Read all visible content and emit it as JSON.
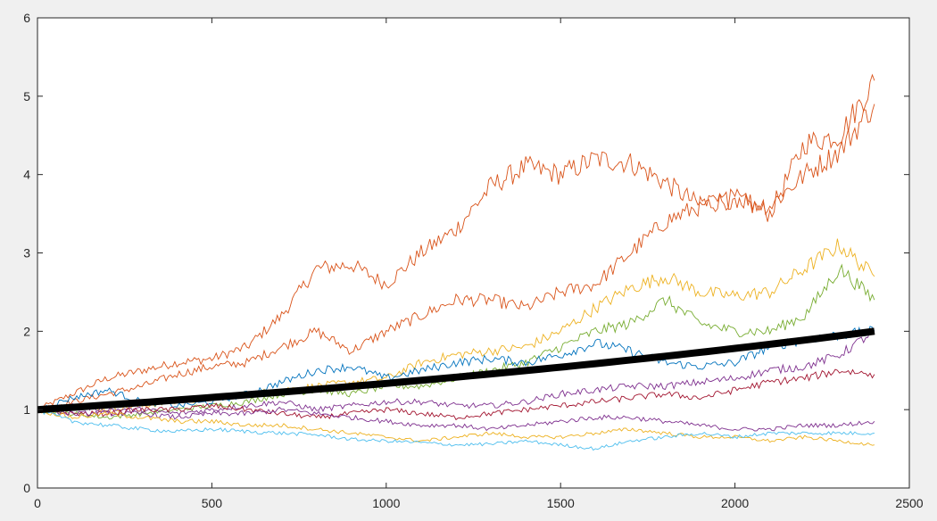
{
  "chart_data": {
    "type": "line",
    "title": "",
    "xlabel": "",
    "ylabel": "",
    "xlim": [
      0,
      2500
    ],
    "ylim": [
      0,
      6
    ],
    "x_ticks": [
      0,
      500,
      1000,
      1500,
      2000,
      2500
    ],
    "y_ticks": [
      0,
      1,
      2,
      3,
      4,
      5,
      6
    ],
    "x_tick_labels": [
      "0",
      "500",
      "1000",
      "1500",
      "2000",
      "2500"
    ],
    "y_tick_labels": [
      "0",
      "1",
      "2",
      "3",
      "4",
      "5",
      "6"
    ],
    "grid": false,
    "legend": "none",
    "mean_line": {
      "color": "#000000",
      "x": [
        0,
        2400
      ],
      "growth_end": 2.0
    },
    "series": [
      {
        "color": "#D95319",
        "x": [
          0,
          100,
          200,
          300,
          400,
          500,
          600,
          700,
          800,
          900,
          1000,
          1100,
          1200,
          1300,
          1400,
          1500,
          1600,
          1700,
          1800,
          1900,
          2000,
          2100,
          2200,
          2300,
          2400
        ],
        "values": [
          1.0,
          1.2,
          1.4,
          1.5,
          1.6,
          1.65,
          1.8,
          2.2,
          2.8,
          2.85,
          2.6,
          3.0,
          3.3,
          3.85,
          4.1,
          4.0,
          4.2,
          4.15,
          3.9,
          3.6,
          3.7,
          3.5,
          4.4,
          4.5,
          5.2
        ]
      },
      {
        "color": "#D95319",
        "x": [
          0,
          100,
          200,
          300,
          400,
          500,
          600,
          700,
          800,
          900,
          1000,
          1100,
          1200,
          1300,
          1400,
          1500,
          1600,
          1700,
          1800,
          1900,
          2000,
          2100,
          2200,
          2300,
          2400
        ],
        "values": [
          1.0,
          1.1,
          1.2,
          1.3,
          1.45,
          1.55,
          1.6,
          1.8,
          2.0,
          1.75,
          2.0,
          2.2,
          2.4,
          2.4,
          2.3,
          2.5,
          2.6,
          3.0,
          3.4,
          3.6,
          3.7,
          3.6,
          4.0,
          4.3,
          4.9
        ]
      },
      {
        "color": "#EDB120",
        "x": [
          0,
          100,
          200,
          300,
          400,
          500,
          600,
          700,
          800,
          900,
          1000,
          1100,
          1200,
          1300,
          1400,
          1500,
          1600,
          1700,
          1800,
          1900,
          2000,
          2100,
          2200,
          2300,
          2400
        ],
        "values": [
          1.0,
          1.05,
          1.0,
          1.05,
          1.1,
          1.15,
          1.2,
          1.25,
          1.3,
          1.35,
          1.4,
          1.6,
          1.7,
          1.75,
          1.8,
          2.0,
          2.3,
          2.55,
          2.7,
          2.5,
          2.45,
          2.5,
          2.8,
          3.1,
          2.7
        ]
      },
      {
        "color": "#77AC30",
        "x": [
          0,
          100,
          200,
          300,
          400,
          500,
          600,
          700,
          800,
          900,
          1000,
          1100,
          1200,
          1300,
          1400,
          1500,
          1600,
          1700,
          1800,
          1900,
          2000,
          2100,
          2200,
          2300,
          2400
        ],
        "values": [
          1.0,
          0.95,
          0.9,
          0.95,
          1.0,
          1.05,
          1.1,
          1.2,
          1.25,
          1.2,
          1.3,
          1.3,
          1.4,
          1.5,
          1.6,
          1.8,
          2.0,
          2.1,
          2.4,
          2.1,
          2.0,
          2.0,
          2.2,
          2.8,
          2.4
        ]
      },
      {
        "color": "#0072BD",
        "x": [
          0,
          100,
          200,
          300,
          400,
          500,
          600,
          700,
          800,
          900,
          1000,
          1100,
          1200,
          1300,
          1400,
          1500,
          1600,
          1700,
          1800,
          1900,
          2000,
          2100,
          2200,
          2300,
          2400
        ],
        "values": [
          1.0,
          1.15,
          1.25,
          1.1,
          1.05,
          1.1,
          1.2,
          1.35,
          1.5,
          1.55,
          1.4,
          1.5,
          1.6,
          1.65,
          1.6,
          1.7,
          1.85,
          1.75,
          1.6,
          1.55,
          1.6,
          1.8,
          1.9,
          1.95,
          2.0
        ]
      },
      {
        "color": "#7E2F8E",
        "x": [
          0,
          100,
          200,
          300,
          400,
          500,
          600,
          700,
          800,
          900,
          1000,
          1100,
          1200,
          1300,
          1400,
          1500,
          1600,
          1700,
          1800,
          1900,
          2000,
          2100,
          2200,
          2300,
          2400
        ],
        "values": [
          1.0,
          1.05,
          1.0,
          1.0,
          0.95,
          1.0,
          1.05,
          1.1,
          1.0,
          1.05,
          1.1,
          1.1,
          1.05,
          1.05,
          1.1,
          1.2,
          1.25,
          1.3,
          1.3,
          1.35,
          1.4,
          1.5,
          1.55,
          1.7,
          2.0
        ]
      },
      {
        "color": "#A2142F",
        "x": [
          0,
          100,
          200,
          300,
          400,
          500,
          600,
          700,
          800,
          900,
          1000,
          1100,
          1200,
          1300,
          1400,
          1500,
          1600,
          1700,
          1800,
          1900,
          2000,
          2100,
          2200,
          2300,
          2400
        ],
        "values": [
          1.0,
          0.95,
          0.95,
          1.0,
          1.0,
          1.05,
          1.0,
          0.95,
          0.9,
          0.95,
          1.0,
          0.95,
          0.9,
          0.95,
          1.0,
          1.05,
          1.1,
          1.15,
          1.2,
          1.15,
          1.25,
          1.35,
          1.4,
          1.5,
          1.45
        ]
      },
      {
        "color": "#7E2F8E",
        "x": [
          0,
          100,
          200,
          300,
          400,
          500,
          600,
          700,
          800,
          900,
          1000,
          1100,
          1200,
          1300,
          1400,
          1500,
          1600,
          1700,
          1800,
          1900,
          2000,
          2100,
          2200,
          2300,
          2400
        ],
        "values": [
          1.0,
          0.95,
          0.95,
          0.95,
          0.9,
          0.95,
          0.95,
          1.0,
          0.95,
          0.9,
          0.85,
          0.8,
          0.8,
          0.75,
          0.8,
          0.85,
          0.9,
          0.9,
          0.85,
          0.8,
          0.75,
          0.75,
          0.8,
          0.8,
          0.85
        ]
      },
      {
        "color": "#EDB120",
        "x": [
          0,
          100,
          200,
          300,
          400,
          500,
          600,
          700,
          800,
          900,
          1000,
          1100,
          1200,
          1300,
          1400,
          1500,
          1600,
          1700,
          1800,
          1900,
          2000,
          2100,
          2200,
          2300,
          2400
        ],
        "values": [
          1.0,
          0.9,
          0.95,
          0.9,
          0.85,
          0.85,
          0.8,
          0.8,
          0.75,
          0.7,
          0.65,
          0.6,
          0.65,
          0.7,
          0.65,
          0.65,
          0.7,
          0.75,
          0.7,
          0.65,
          0.65,
          0.6,
          0.65,
          0.6,
          0.55
        ]
      },
      {
        "color": "#4DBEEE",
        "x": [
          0,
          100,
          200,
          300,
          400,
          500,
          600,
          700,
          800,
          900,
          1000,
          1100,
          1200,
          1300,
          1400,
          1500,
          1600,
          1700,
          1800,
          1900,
          2000,
          2100,
          2200,
          2300,
          2400
        ],
        "values": [
          1.0,
          0.85,
          0.8,
          0.75,
          0.72,
          0.75,
          0.72,
          0.7,
          0.68,
          0.62,
          0.6,
          0.58,
          0.55,
          0.56,
          0.6,
          0.55,
          0.5,
          0.6,
          0.65,
          0.7,
          0.65,
          0.7,
          0.7,
          0.7,
          0.7
        ]
      }
    ]
  }
}
